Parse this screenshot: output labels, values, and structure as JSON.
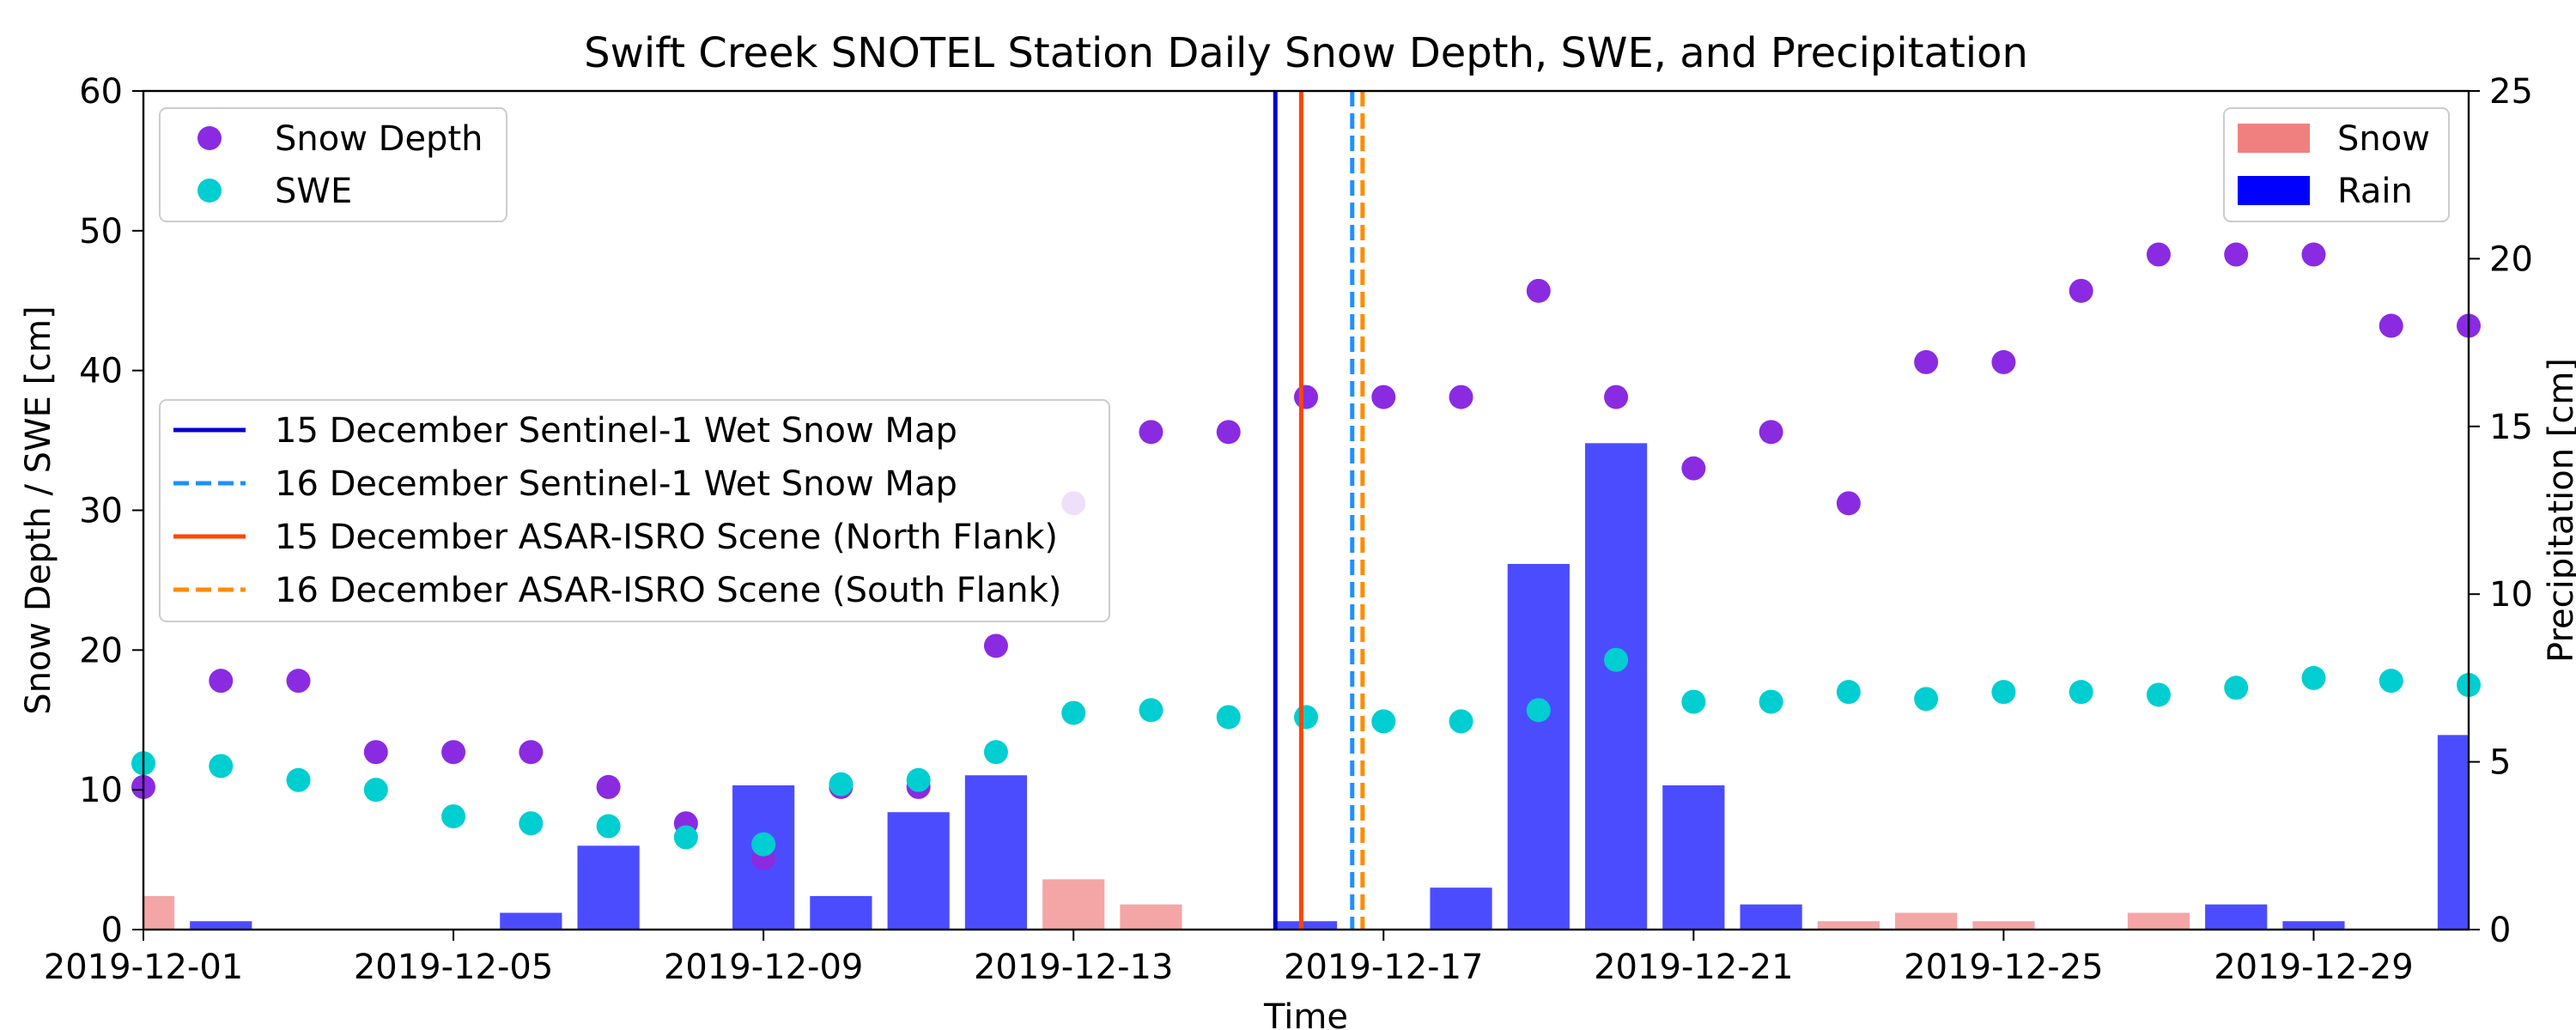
{
  "chart_data": {
    "type": "scatter",
    "title": "Swift Creek SNOTEL Station Daily Snow Depth, SWE, and Precipitation",
    "xlabel": "Time",
    "ylabel_left": "Snow Depth / SWE [cm]",
    "ylabel_right": "Precipitation [cm]",
    "xlim": [
      "2019-12-01",
      "2019-12-31"
    ],
    "ylim_left": [
      0,
      60
    ],
    "ylim_right": [
      0,
      25
    ],
    "x_ticks": [
      "2019-12-01",
      "2019-12-05",
      "2019-12-09",
      "2019-12-13",
      "2019-12-17",
      "2019-12-21",
      "2019-12-25",
      "2019-12-29"
    ],
    "y_ticks_left": [
      "0",
      "10",
      "20",
      "30",
      "40",
      "50",
      "60"
    ],
    "y_ticks_right": [
      "0",
      "5",
      "10",
      "15",
      "20",
      "25"
    ],
    "grid": false,
    "colors": {
      "snow_depth": "#8a2be2",
      "swe": "#00ced1",
      "snow_bar": "#f08080",
      "rain_bar": "#0000ff",
      "ylabel_left": "#8a2be2",
      "ylabel_right": "#0000ff"
    },
    "series": [
      {
        "name": "Snow Depth",
        "kind": "scatter",
        "axis": "left",
        "points": [
          [
            "2019-12-01",
            10.2
          ],
          [
            "2019-12-02",
            17.8
          ],
          [
            "2019-12-03",
            17.8
          ],
          [
            "2019-12-04",
            12.7
          ],
          [
            "2019-12-05",
            12.7
          ],
          [
            "2019-12-06",
            12.7
          ],
          [
            "2019-12-07",
            10.2
          ],
          [
            "2019-12-08",
            7.6
          ],
          [
            "2019-12-09",
            5.1
          ],
          [
            "2019-12-10",
            10.2
          ],
          [
            "2019-12-11",
            10.2
          ],
          [
            "2019-12-12",
            20.3
          ],
          [
            "2019-12-13",
            30.5
          ],
          [
            "2019-12-14",
            35.6
          ],
          [
            "2019-12-15",
            35.6
          ],
          [
            "2019-12-16",
            38.1
          ],
          [
            "2019-12-17",
            38.1
          ],
          [
            "2019-12-18",
            38.1
          ],
          [
            "2019-12-19",
            45.7
          ],
          [
            "2019-12-20",
            38.1
          ],
          [
            "2019-12-21",
            33.0
          ],
          [
            "2019-12-22",
            35.6
          ],
          [
            "2019-12-23",
            30.5
          ],
          [
            "2019-12-24",
            40.6
          ],
          [
            "2019-12-25",
            40.6
          ],
          [
            "2019-12-26",
            45.7
          ],
          [
            "2019-12-27",
            48.3
          ],
          [
            "2019-12-28",
            48.3
          ],
          [
            "2019-12-29",
            48.3
          ],
          [
            "2019-12-30",
            43.2
          ],
          [
            "2019-12-31",
            43.2
          ]
        ]
      },
      {
        "name": "SWE",
        "kind": "scatter",
        "axis": "left",
        "points": [
          [
            "2019-12-01",
            11.9
          ],
          [
            "2019-12-02",
            11.7
          ],
          [
            "2019-12-03",
            10.7
          ],
          [
            "2019-12-04",
            10.0
          ],
          [
            "2019-12-05",
            8.1
          ],
          [
            "2019-12-06",
            7.6
          ],
          [
            "2019-12-07",
            7.4
          ],
          [
            "2019-12-08",
            6.6
          ],
          [
            "2019-12-09",
            6.1
          ],
          [
            "2019-12-10",
            10.4
          ],
          [
            "2019-12-11",
            10.7
          ],
          [
            "2019-12-12",
            12.7
          ],
          [
            "2019-12-13",
            15.5
          ],
          [
            "2019-12-14",
            15.7
          ],
          [
            "2019-12-15",
            15.2
          ],
          [
            "2019-12-16",
            15.2
          ],
          [
            "2019-12-17",
            14.9
          ],
          [
            "2019-12-18",
            14.9
          ],
          [
            "2019-12-19",
            15.7
          ],
          [
            "2019-12-20",
            19.3
          ],
          [
            "2019-12-21",
            16.3
          ],
          [
            "2019-12-22",
            16.3
          ],
          [
            "2019-12-23",
            17.0
          ],
          [
            "2019-12-24",
            16.5
          ],
          [
            "2019-12-25",
            17.0
          ],
          [
            "2019-12-26",
            17.0
          ],
          [
            "2019-12-27",
            16.8
          ],
          [
            "2019-12-28",
            17.3
          ],
          [
            "2019-12-29",
            18.0
          ],
          [
            "2019-12-30",
            17.8
          ],
          [
            "2019-12-31",
            17.5
          ]
        ]
      },
      {
        "name": "Snow",
        "kind": "bar",
        "axis": "right",
        "points": [
          [
            "2019-12-01",
            1.0
          ],
          [
            "2019-12-13",
            1.5
          ],
          [
            "2019-12-14",
            0.75
          ],
          [
            "2019-12-23",
            0.25
          ],
          [
            "2019-12-24",
            0.5
          ],
          [
            "2019-12-25",
            0.25
          ],
          [
            "2019-12-27",
            0.5
          ]
        ]
      },
      {
        "name": "Rain",
        "kind": "bar",
        "axis": "right",
        "points": [
          [
            "2019-12-02",
            0.25
          ],
          [
            "2019-12-06",
            0.5
          ],
          [
            "2019-12-07",
            2.5
          ],
          [
            "2019-12-09",
            4.3
          ],
          [
            "2019-12-10",
            1.0
          ],
          [
            "2019-12-11",
            3.5
          ],
          [
            "2019-12-12",
            4.6
          ],
          [
            "2019-12-16",
            0.25
          ],
          [
            "2019-12-18",
            1.25
          ],
          [
            "2019-12-19",
            10.9
          ],
          [
            "2019-12-20",
            14.5
          ],
          [
            "2019-12-21",
            4.3
          ],
          [
            "2019-12-22",
            0.75
          ],
          [
            "2019-12-28",
            0.75
          ],
          [
            "2019-12-29",
            0.25
          ],
          [
            "2019-12-31",
            5.8
          ]
        ]
      }
    ],
    "vlines": [
      {
        "label": "15 December Sentinel-1 Wet Snow Map",
        "date": "2019-12-15",
        "hour": 14.5,
        "color": "#0000cd",
        "style": "solid"
      },
      {
        "label": "16 December Sentinel-1 Wet Snow Map",
        "date": "2019-12-16",
        "hour": 14.3,
        "color": "#1e90ff",
        "style": "dashed"
      },
      {
        "label": "15 December ASAR-ISRO Scene (North Flank)",
        "date": "2019-12-15",
        "hour": 22.5,
        "color": "#ff4500",
        "style": "solid"
      },
      {
        "label": "16 December ASAR-ISRO Scene (South Flank)",
        "date": "2019-12-16",
        "hour": 17.5,
        "color": "#ff8c00",
        "style": "dashed"
      }
    ],
    "legends": {
      "points": "upper-left",
      "bars": "upper-right",
      "lines": "center-left"
    }
  }
}
